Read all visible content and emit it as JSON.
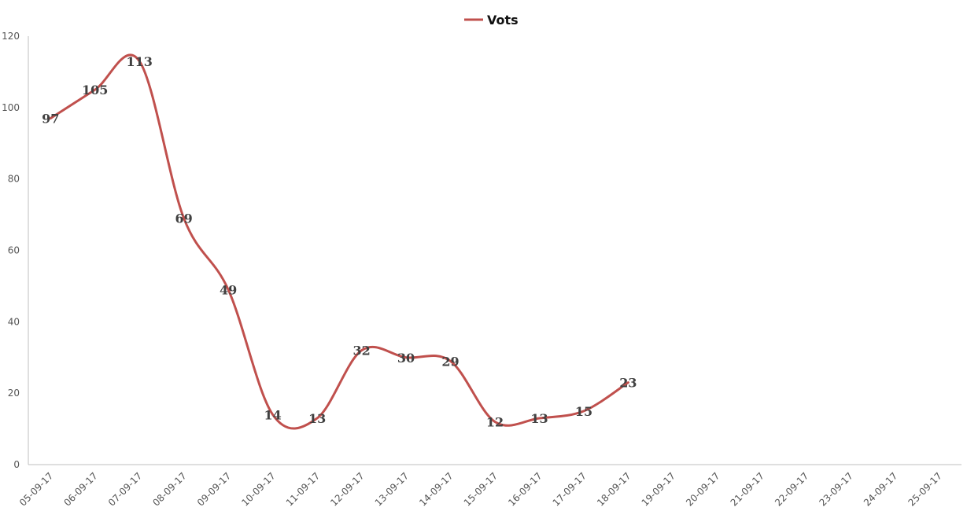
{
  "chart_data": {
    "type": "line",
    "categories": [
      "05-09-17",
      "06-09-17",
      "07-09-17",
      "08-09-17",
      "09-09-17",
      "10-09-17",
      "11-09-17",
      "12-09-17",
      "13-09-17",
      "14-09-17",
      "15-09-17",
      "16-09-17",
      "17-09-17",
      "18-09-17",
      "19-09-17",
      "20-09-17",
      "21-09-17",
      "22-09-17",
      "23-09-17",
      "24-09-17",
      "25-09-17"
    ],
    "series": [
      {
        "name": "Vots",
        "color": "#c0504d",
        "values": [
          97,
          105,
          113,
          69,
          49,
          14,
          13,
          32,
          30,
          29,
          12,
          13,
          15,
          23,
          null,
          null,
          null,
          null,
          null,
          null,
          null
        ]
      }
    ],
    "ylim": [
      0,
      120
    ],
    "yticks": [
      0,
      20,
      40,
      60,
      80,
      100,
      120
    ],
    "smooth": true,
    "grid": false,
    "legend_position": "top-center",
    "data_labels": true
  }
}
